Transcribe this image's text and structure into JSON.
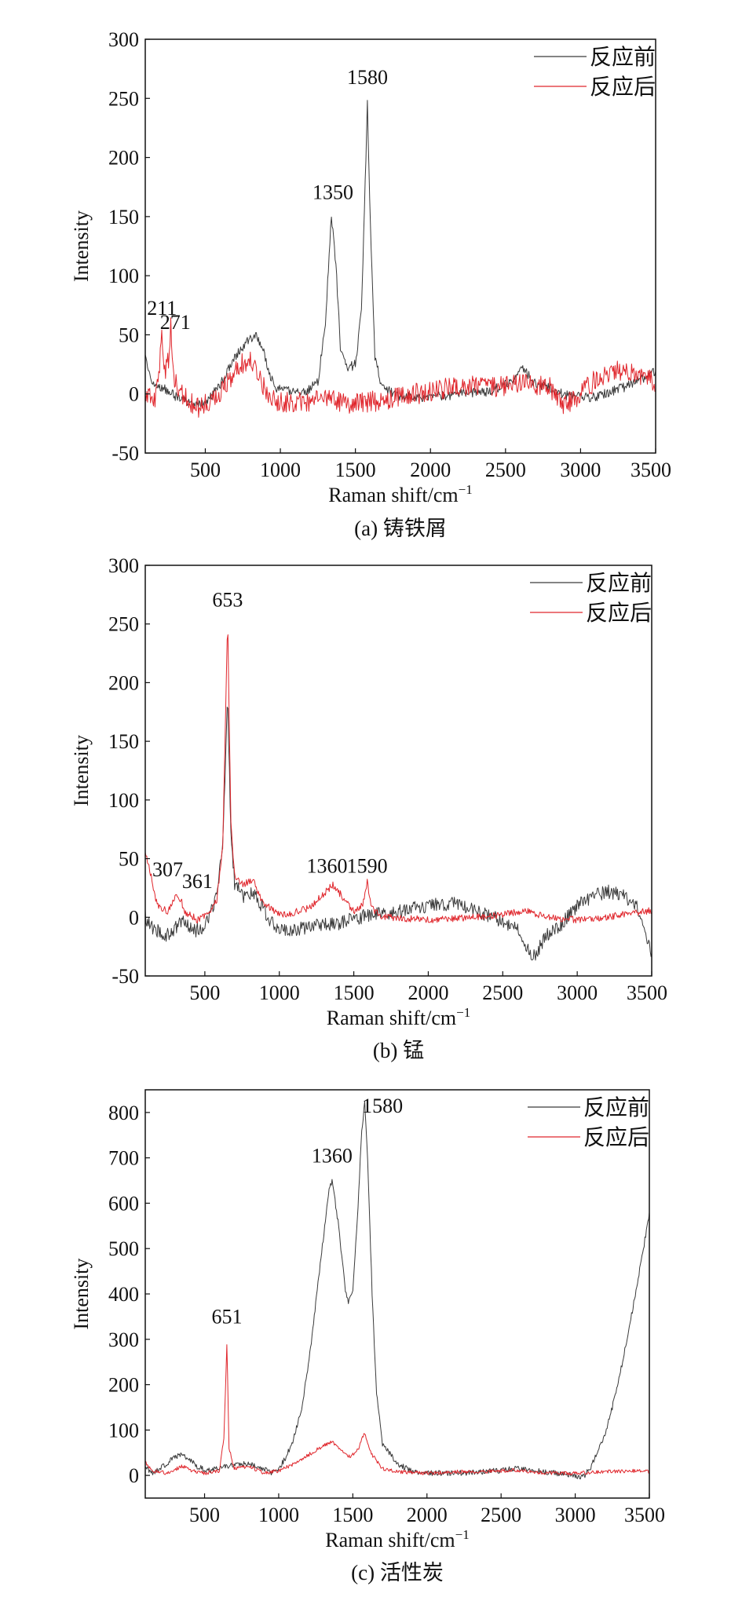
{
  "colors": {
    "before": "#3a3a3a",
    "after": "#e0262c",
    "axis": "#111111"
  },
  "chart_data": [
    {
      "type": "line",
      "caption": "(a) 铸铁屑",
      "xlabel": "Raman shift/cm",
      "xlabel_sup": "−1",
      "ylabel": "Intensity",
      "xlim": [
        100,
        3500
      ],
      "ylim": [
        -50,
        300
      ],
      "xticks": [
        500,
        1000,
        1500,
        2000,
        2500,
        3000,
        3500
      ],
      "yticks": [
        -50,
        0,
        50,
        100,
        150,
        200,
        250,
        300
      ],
      "legend_position": "top-right",
      "annotations": [
        {
          "text": "1580",
          "x": 1580,
          "y": 262
        },
        {
          "text": "1350",
          "x": 1350,
          "y": 165
        },
        {
          "text": "211",
          "x": 211,
          "y": 67
        },
        {
          "text": "271",
          "x": 300,
          "y": 55
        }
      ],
      "series": [
        {
          "name": "反应前",
          "color_key": "before",
          "noise": 4,
          "points": [
            [
              100,
              30
            ],
            [
              130,
              15
            ],
            [
              170,
              8
            ],
            [
              230,
              4
            ],
            [
              300,
              -2
            ],
            [
              380,
              -6
            ],
            [
              450,
              -10
            ],
            [
              520,
              -5
            ],
            [
              600,
              8
            ],
            [
              680,
              28
            ],
            [
              760,
              42
            ],
            [
              830,
              50
            ],
            [
              880,
              40
            ],
            [
              930,
              15
            ],
            [
              980,
              4
            ],
            [
              1080,
              2
            ],
            [
              1180,
              3
            ],
            [
              1250,
              10
            ],
            [
              1300,
              60
            ],
            [
              1340,
              150
            ],
            [
              1370,
              110
            ],
            [
              1400,
              40
            ],
            [
              1450,
              22
            ],
            [
              1500,
              25
            ],
            [
              1540,
              70
            ],
            [
              1570,
              200
            ],
            [
              1580,
              245
            ],
            [
              1600,
              140
            ],
            [
              1630,
              30
            ],
            [
              1680,
              5
            ],
            [
              1800,
              -2
            ],
            [
              2000,
              -3
            ],
            [
              2200,
              0
            ],
            [
              2400,
              2
            ],
            [
              2550,
              12
            ],
            [
              2620,
              22
            ],
            [
              2700,
              8
            ],
            [
              2800,
              5
            ],
            [
              2900,
              -1
            ],
            [
              3000,
              -2
            ],
            [
              3100,
              -3
            ],
            [
              3200,
              2
            ],
            [
              3300,
              6
            ],
            [
              3400,
              12
            ],
            [
              3500,
              20
            ]
          ]
        },
        {
          "name": "反应后",
          "color_key": "after",
          "noise": 9,
          "points": [
            [
              100,
              0
            ],
            [
              170,
              -5
            ],
            [
              195,
              20
            ],
            [
              211,
              55
            ],
            [
              225,
              15
            ],
            [
              255,
              30
            ],
            [
              271,
              58
            ],
            [
              290,
              15
            ],
            [
              350,
              -2
            ],
            [
              450,
              -12
            ],
            [
              550,
              -5
            ],
            [
              650,
              10
            ],
            [
              720,
              25
            ],
            [
              800,
              28
            ],
            [
              860,
              12
            ],
            [
              950,
              -5
            ],
            [
              1100,
              -8
            ],
            [
              1300,
              -5
            ],
            [
              1500,
              -8
            ],
            [
              1700,
              -5
            ],
            [
              1900,
              0
            ],
            [
              2100,
              5
            ],
            [
              2300,
              8
            ],
            [
              2500,
              6
            ],
            [
              2650,
              10
            ],
            [
              2800,
              5
            ],
            [
              2900,
              -10
            ],
            [
              3000,
              0
            ],
            [
              3100,
              12
            ],
            [
              3200,
              20
            ],
            [
              3300,
              18
            ],
            [
              3400,
              15
            ],
            [
              3500,
              10
            ]
          ]
        }
      ]
    },
    {
      "type": "line",
      "caption": "(b) 锰",
      "xlabel": "Raman shift/cm",
      "xlabel_sup": "−1",
      "ylabel": "Intensity",
      "xlim": [
        100,
        3500
      ],
      "ylim": [
        -50,
        300
      ],
      "xticks": [
        500,
        1000,
        1500,
        2000,
        2500,
        3000,
        3500
      ],
      "yticks": [
        -50,
        0,
        50,
        100,
        150,
        200,
        250,
        300
      ],
      "legend_position": "top-right",
      "annotations": [
        {
          "text": "653",
          "x": 653,
          "y": 265
        },
        {
          "text": "307",
          "x": 250,
          "y": 35
        },
        {
          "text": "361",
          "x": 450,
          "y": 25
        },
        {
          "text": "1360",
          "x": 1320,
          "y": 38
        },
        {
          "text": "1590",
          "x": 1590,
          "y": 38
        }
      ],
      "series": [
        {
          "name": "反应前",
          "color_key": "before",
          "noise": 6,
          "points": [
            [
              100,
              0
            ],
            [
              150,
              -10
            ],
            [
              250,
              -15
            ],
            [
              307,
              -8
            ],
            [
              361,
              -2
            ],
            [
              420,
              -12
            ],
            [
              500,
              -8
            ],
            [
              570,
              15
            ],
            [
              620,
              60
            ],
            [
              653,
              195
            ],
            [
              672,
              80
            ],
            [
              700,
              28
            ],
            [
              760,
              18
            ],
            [
              820,
              22
            ],
            [
              880,
              10
            ],
            [
              950,
              -5
            ],
            [
              1050,
              -12
            ],
            [
              1200,
              -8
            ],
            [
              1400,
              -5
            ],
            [
              1600,
              2
            ],
            [
              1800,
              5
            ],
            [
              2000,
              10
            ],
            [
              2200,
              12
            ],
            [
              2400,
              2
            ],
            [
              2600,
              -10
            ],
            [
              2700,
              -35
            ],
            [
              2800,
              -15
            ],
            [
              2900,
              -5
            ],
            [
              3000,
              10
            ],
            [
              3100,
              18
            ],
            [
              3200,
              22
            ],
            [
              3300,
              20
            ],
            [
              3400,
              8
            ],
            [
              3500,
              -30
            ]
          ]
        },
        {
          "name": "反应后",
          "color_key": "after",
          "noise": 3,
          "points": [
            [
              100,
              55
            ],
            [
              130,
              40
            ],
            [
              180,
              10
            ],
            [
              250,
              5
            ],
            [
              307,
              18
            ],
            [
              340,
              15
            ],
            [
              361,
              5
            ],
            [
              400,
              2
            ],
            [
              450,
              -2
            ],
            [
              520,
              2
            ],
            [
              580,
              15
            ],
            [
              620,
              60
            ],
            [
              653,
              255
            ],
            [
              675,
              80
            ],
            [
              700,
              35
            ],
            [
              760,
              28
            ],
            [
              820,
              32
            ],
            [
              880,
              15
            ],
            [
              950,
              6
            ],
            [
              1050,
              2
            ],
            [
              1200,
              8
            ],
            [
              1300,
              20
            ],
            [
              1360,
              28
            ],
            [
              1420,
              18
            ],
            [
              1500,
              5
            ],
            [
              1560,
              10
            ],
            [
              1590,
              30
            ],
            [
              1620,
              8
            ],
            [
              1700,
              0
            ],
            [
              2000,
              -2
            ],
            [
              2300,
              0
            ],
            [
              2500,
              2
            ],
            [
              2650,
              6
            ],
            [
              2800,
              0
            ],
            [
              3000,
              -2
            ],
            [
              3200,
              0
            ],
            [
              3350,
              3
            ],
            [
              3500,
              6
            ]
          ]
        }
      ]
    },
    {
      "type": "line",
      "caption": "(c) 活性炭",
      "xlabel": "Raman shift/cm",
      "xlabel_sup": "−1",
      "ylabel": "Intensity",
      "xlim": [
        100,
        3500
      ],
      "ylim": [
        -50,
        850
      ],
      "xticks": [
        500,
        1000,
        1500,
        2000,
        2500,
        3000,
        3500
      ],
      "yticks": [
        0,
        100,
        200,
        300,
        400,
        500,
        600,
        700,
        800
      ],
      "legend_position": "top-right",
      "annotations": [
        {
          "text": "1580",
          "x": 1700,
          "y": 800
        },
        {
          "text": "1360",
          "x": 1360,
          "y": 690
        },
        {
          "text": "651",
          "x": 651,
          "y": 335
        }
      ],
      "series": [
        {
          "name": "反应前",
          "color_key": "before",
          "noise": 6,
          "points": [
            [
              100,
              20
            ],
            [
              150,
              5
            ],
            [
              200,
              15
            ],
            [
              280,
              35
            ],
            [
              330,
              45
            ],
            [
              380,
              40
            ],
            [
              450,
              20
            ],
            [
              520,
              10
            ],
            [
              600,
              15
            ],
            [
              700,
              25
            ],
            [
              800,
              25
            ],
            [
              900,
              15
            ],
            [
              950,
              5
            ],
            [
              1000,
              15
            ],
            [
              1050,
              40
            ],
            [
              1100,
              80
            ],
            [
              1150,
              140
            ],
            [
              1200,
              240
            ],
            [
              1250,
              380
            ],
            [
              1300,
              520
            ],
            [
              1340,
              630
            ],
            [
              1360,
              650
            ],
            [
              1400,
              560
            ],
            [
              1450,
              410
            ],
            [
              1470,
              380
            ],
            [
              1500,
              410
            ],
            [
              1530,
              560
            ],
            [
              1560,
              760
            ],
            [
              1580,
              820
            ],
            [
              1600,
              700
            ],
            [
              1630,
              400
            ],
            [
              1660,
              180
            ],
            [
              1700,
              70
            ],
            [
              1800,
              25
            ],
            [
              1900,
              10
            ],
            [
              2000,
              5
            ],
            [
              2200,
              5
            ],
            [
              2400,
              8
            ],
            [
              2600,
              15
            ],
            [
              2800,
              8
            ],
            [
              3000,
              0
            ],
            [
              3050,
              -5
            ],
            [
              3100,
              15
            ],
            [
              3150,
              50
            ],
            [
              3200,
              90
            ],
            [
              3250,
              150
            ],
            [
              3300,
              220
            ],
            [
              3350,
              300
            ],
            [
              3400,
              390
            ],
            [
              3450,
              480
            ],
            [
              3500,
              580
            ]
          ]
        },
        {
          "name": "反应后",
          "color_key": "after",
          "noise": 4,
          "points": [
            [
              100,
              30
            ],
            [
              150,
              10
            ],
            [
              250,
              5
            ],
            [
              350,
              20
            ],
            [
              420,
              10
            ],
            [
              500,
              5
            ],
            [
              600,
              10
            ],
            [
              630,
              80
            ],
            [
              651,
              295
            ],
            [
              665,
              60
            ],
            [
              700,
              15
            ],
            [
              800,
              20
            ],
            [
              900,
              5
            ],
            [
              1000,
              10
            ],
            [
              1100,
              25
            ],
            [
              1200,
              45
            ],
            [
              1300,
              65
            ],
            [
              1360,
              75
            ],
            [
              1420,
              55
            ],
            [
              1480,
              40
            ],
            [
              1540,
              60
            ],
            [
              1580,
              95
            ],
            [
              1620,
              50
            ],
            [
              1700,
              15
            ],
            [
              1800,
              8
            ],
            [
              2000,
              5
            ],
            [
              2200,
              8
            ],
            [
              2400,
              8
            ],
            [
              2600,
              12
            ],
            [
              2800,
              5
            ],
            [
              3000,
              5
            ],
            [
              3200,
              8
            ],
            [
              3400,
              10
            ],
            [
              3500,
              8
            ]
          ]
        }
      ]
    }
  ]
}
